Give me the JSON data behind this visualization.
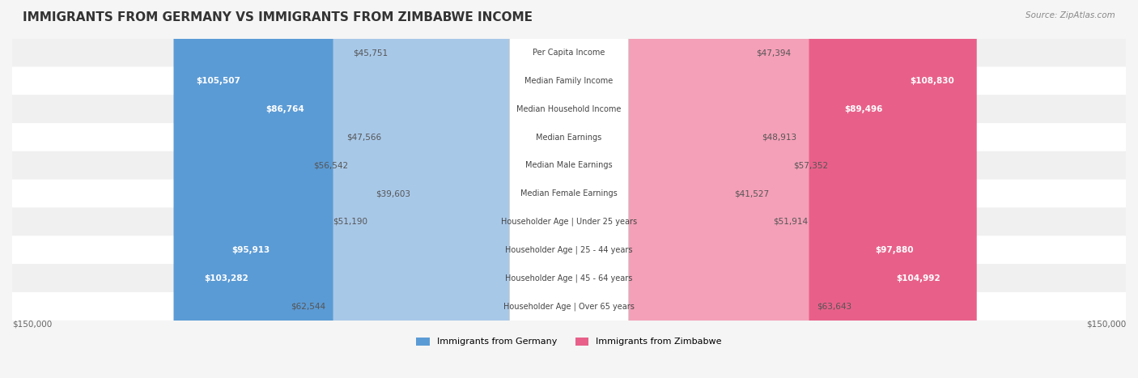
{
  "title": "IMMIGRANTS FROM GERMANY VS IMMIGRANTS FROM ZIMBABWE INCOME",
  "source": "Source: ZipAtlas.com",
  "categories": [
    "Per Capita Income",
    "Median Family Income",
    "Median Household Income",
    "Median Earnings",
    "Median Male Earnings",
    "Median Female Earnings",
    "Householder Age | Under 25 years",
    "Householder Age | 25 - 44 years",
    "Householder Age | 45 - 64 years",
    "Householder Age | Over 65 years"
  ],
  "germany_values": [
    45751,
    105507,
    86764,
    47566,
    56542,
    39603,
    51190,
    95913,
    103282,
    62544
  ],
  "zimbabwe_values": [
    47394,
    108830,
    89496,
    48913,
    57352,
    41527,
    51914,
    97880,
    104992,
    63643
  ],
  "germany_labels": [
    "$45,751",
    "$105,507",
    "$86,764",
    "$47,566",
    "$56,542",
    "$39,603",
    "$51,190",
    "$95,913",
    "$103,282",
    "$62,544"
  ],
  "zimbabwe_labels": [
    "$47,394",
    "$108,830",
    "$89,496",
    "$48,913",
    "$57,352",
    "$41,527",
    "$51,914",
    "$97,880",
    "$104,992",
    "$63,643"
  ],
  "germany_color_light": "#a8c8e8",
  "germany_color_dark": "#5b9bd5",
  "zimbabwe_color_light": "#f4a0b8",
  "zimbabwe_color_dark": "#e8608a",
  "max_value": 150000,
  "background_color": "#f5f5f5",
  "row_bg_color": "#f0f0f0",
  "row_alt_color": "#ffffff",
  "legend_germany": "Immigrants from Germany",
  "legend_zimbabwe": "Immigrants from Zimbabwe",
  "germany_label_threshold": 80000,
  "zimbabwe_label_threshold": 80000
}
